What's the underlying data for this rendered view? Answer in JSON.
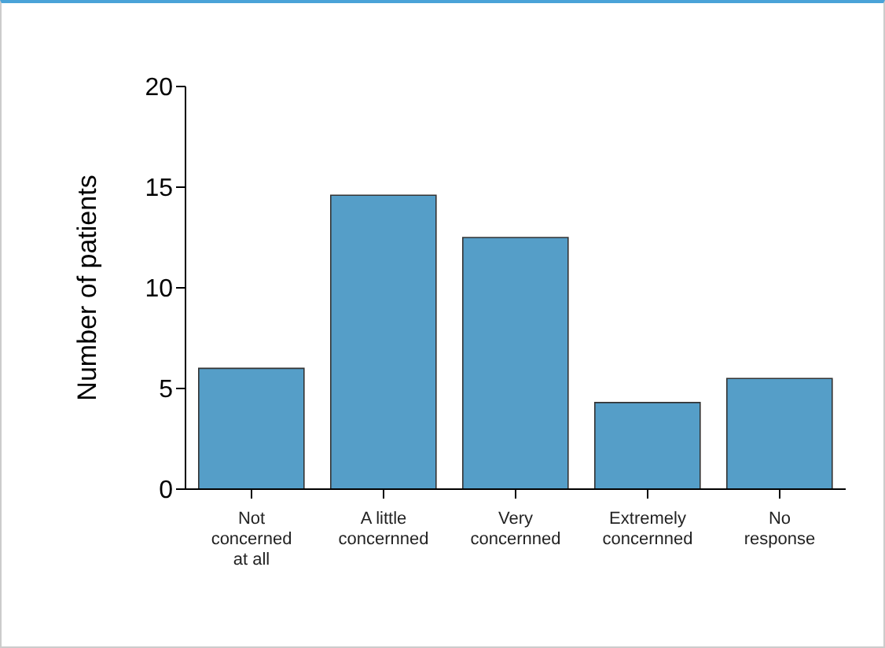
{
  "chart_data": {
    "type": "bar",
    "ylabel": "Number of patients",
    "categories": [
      "Not concerned at all",
      "A little concernned",
      "Very concernned",
      "Extremely concernned",
      "No response"
    ],
    "values": [
      6,
      14.6,
      12.5,
      4.3,
      5.5
    ],
    "color": "#559ec8",
    "ylim": [
      0,
      20
    ],
    "yticks": [
      0,
      5,
      10,
      15,
      20
    ]
  }
}
